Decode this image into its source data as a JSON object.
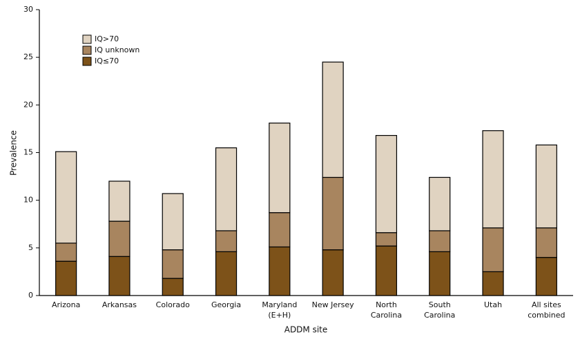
{
  "chart_data": {
    "type": "stacked_bar",
    "x_label": "ADDM site",
    "y_label": "Prevalence",
    "categories": [
      "Arizona",
      "Arkansas",
      "Colorado",
      "Georgia",
      "Maryland\n(E+H)",
      "New Jersey",
      "North\nCarolina",
      "South\nCarolina",
      "Utah",
      "All sites\ncombined"
    ],
    "series": [
      {
        "name": "IQ≤70",
        "color": "#7d5219",
        "values": [
          3.6,
          4.1,
          1.8,
          4.6,
          5.1,
          4.8,
          5.2,
          4.6,
          2.5,
          4.0
        ]
      },
      {
        "name": "IQ unknown",
        "color": "#a8855f",
        "values": [
          1.9,
          3.7,
          3.0,
          2.2,
          3.6,
          7.6,
          1.4,
          2.2,
          4.6,
          3.1
        ]
      },
      {
        "name": "IQ>70",
        "color": "#e0d3c1",
        "values": [
          9.6,
          4.2,
          5.9,
          8.7,
          9.4,
          12.1,
          10.2,
          5.6,
          10.2,
          8.7
        ]
      }
    ],
    "ylim": [
      0,
      30
    ],
    "yticks": [
      0,
      5,
      10,
      15,
      20,
      25,
      30
    ],
    "legend": "upper-left"
  }
}
